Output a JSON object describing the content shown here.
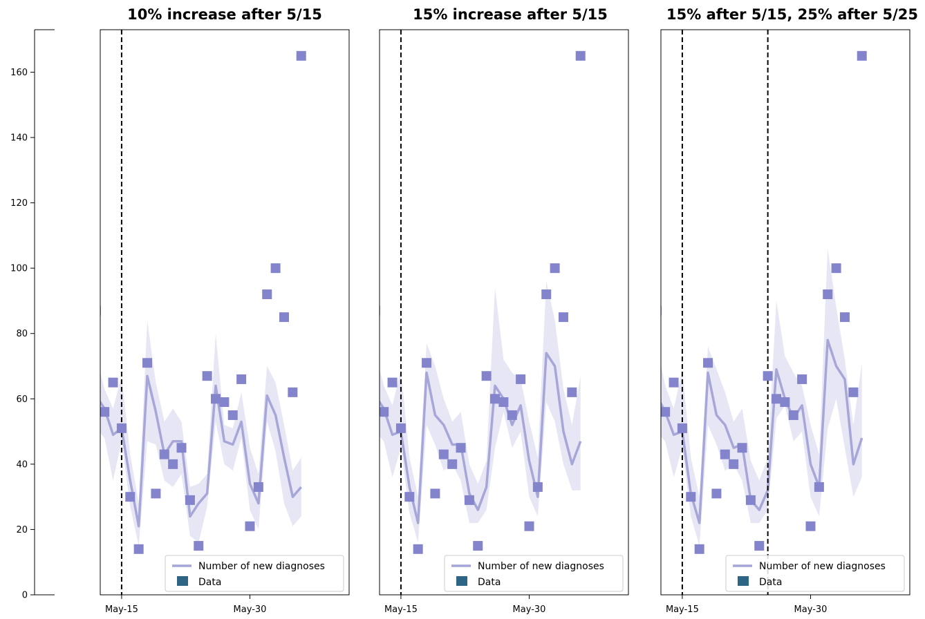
{
  "colors": {
    "line": "#a6a6d8",
    "band": "#d9d9f0",
    "marker": "#8484cc",
    "legend_data": "#2f6584",
    "axis": "#000000"
  },
  "chart_data": [
    {
      "type": "line",
      "title": "10% increase after 5/15",
      "xlabel": "",
      "ylabel": "",
      "x_ticks": [
        "May-15",
        "May-30"
      ],
      "x_tick_days": [
        15,
        30
      ],
      "vlines": [
        15
      ],
      "ylim": [
        0,
        173
      ],
      "xlim": [
        12.5,
        41.6
      ],
      "legend": {
        "placement": "lower-right",
        "entries": [
          "Number of new diagnoses",
          "Data"
        ]
      },
      "series": [
        {
          "name": "Number of new diagnoses",
          "kind": "line",
          "x": [
            12,
            13,
            14,
            15,
            16,
            17,
            18,
            19,
            20,
            21,
            22,
            23,
            24,
            25,
            26,
            27,
            28,
            29,
            30,
            31,
            32,
            33,
            34,
            35,
            36
          ],
          "values": [
            61,
            57,
            49,
            51,
            35,
            21,
            67,
            56,
            43,
            47,
            47,
            24,
            28,
            31,
            64,
            47,
            46,
            53,
            34,
            28,
            61,
            55,
            42,
            30,
            33
          ],
          "lower": [
            51,
            48,
            35,
            47,
            27,
            15,
            47,
            46,
            35,
            33,
            37,
            18,
            16,
            27,
            53,
            40,
            38,
            48,
            26,
            20,
            53,
            44,
            28,
            21,
            24
          ],
          "upper": [
            73,
            63,
            57,
            67,
            43,
            28,
            84,
            65,
            53,
            57,
            53,
            33,
            34,
            37,
            80,
            52,
            51,
            62,
            45,
            37,
            70,
            65,
            52,
            38,
            42
          ]
        },
        {
          "name": "Data",
          "kind": "scatter",
          "x": [
            12,
            13,
            14,
            15,
            16,
            17,
            18,
            19,
            20,
            21,
            22,
            23,
            24,
            25,
            26,
            27,
            28,
            29,
            30,
            31,
            32,
            33,
            34,
            35,
            36
          ],
          "values": [
            87,
            56,
            65,
            51,
            30,
            14,
            71,
            31,
            43,
            40,
            45,
            29,
            15,
            67,
            60,
            59,
            55,
            66,
            21,
            33,
            92,
            100,
            85,
            62,
            165
          ]
        }
      ]
    },
    {
      "type": "line",
      "title": "15% increase after 5/15",
      "xlabel": "",
      "ylabel": "",
      "x_ticks": [
        "May-15",
        "May-30"
      ],
      "x_tick_days": [
        15,
        30
      ],
      "vlines": [
        15
      ],
      "ylim": [
        0,
        173
      ],
      "xlim": [
        12.5,
        41.6
      ],
      "legend": {
        "placement": "lower-right",
        "entries": [
          "Number of new diagnoses",
          "Data"
        ]
      },
      "series": [
        {
          "name": "Number of new diagnoses",
          "kind": "line",
          "x": [
            12,
            13,
            14,
            15,
            16,
            17,
            18,
            19,
            20,
            21,
            22,
            23,
            24,
            25,
            26,
            27,
            28,
            29,
            30,
            31,
            32,
            33,
            34,
            35,
            36
          ],
          "values": [
            61,
            57,
            49,
            50,
            33,
            22,
            68,
            55,
            52,
            46,
            46,
            31,
            26,
            33,
            64,
            60,
            52,
            58,
            41,
            30,
            74,
            70,
            50,
            40,
            47
          ],
          "lower": [
            50,
            47,
            36,
            45,
            25,
            16,
            52,
            46,
            38,
            40,
            35,
            22,
            22,
            26,
            45,
            56,
            45,
            50,
            30,
            24,
            59,
            53,
            40,
            32,
            32
          ],
          "upper": [
            74,
            64,
            58,
            69,
            42,
            30,
            77,
            70,
            60,
            53,
            56,
            40,
            34,
            41,
            94,
            72,
            68,
            66,
            53,
            42,
            96,
            84,
            63,
            52,
            67
          ]
        },
        {
          "name": "Data",
          "kind": "scatter",
          "x": [
            12,
            13,
            14,
            15,
            16,
            17,
            18,
            19,
            20,
            21,
            22,
            23,
            24,
            25,
            26,
            27,
            28,
            29,
            30,
            31,
            32,
            33,
            34,
            35,
            36
          ],
          "values": [
            87,
            56,
            65,
            51,
            30,
            14,
            71,
            31,
            43,
            40,
            45,
            29,
            15,
            67,
            60,
            59,
            55,
            66,
            21,
            33,
            92,
            100,
            85,
            62,
            165
          ]
        }
      ]
    },
    {
      "type": "line",
      "title": "15% after 5/15, 25% after 5/25",
      "xlabel": "",
      "ylabel": "",
      "x_ticks": [
        "May-15",
        "May-30"
      ],
      "x_tick_days": [
        15,
        30
      ],
      "vlines": [
        15,
        25
      ],
      "ylim": [
        0,
        173
      ],
      "xlim": [
        12.5,
        41.6
      ],
      "legend": {
        "placement": "lower-right",
        "entries": [
          "Number of new diagnoses",
          "Data"
        ]
      },
      "series": [
        {
          "name": "Number of new diagnoses",
          "kind": "line",
          "x": [
            12,
            13,
            14,
            15,
            16,
            17,
            18,
            19,
            20,
            21,
            22,
            23,
            24,
            25,
            26,
            27,
            28,
            29,
            30,
            31,
            32,
            33,
            34,
            35,
            36
          ],
          "values": [
            61,
            56,
            49,
            50,
            31,
            22,
            68,
            55,
            52,
            45,
            46,
            29,
            26,
            32,
            69,
            60,
            54,
            58,
            40,
            33,
            78,
            70,
            66,
            40,
            48
          ],
          "lower": [
            50,
            47,
            36,
            45,
            24,
            15,
            52,
            46,
            38,
            40,
            35,
            22,
            22,
            26,
            54,
            58,
            47,
            50,
            30,
            24,
            51,
            60,
            45,
            30,
            36
          ],
          "upper": [
            77,
            64,
            57,
            69,
            42,
            30,
            76,
            69,
            62,
            53,
            57,
            41,
            35,
            42,
            90,
            73,
            68,
            64,
            52,
            43,
            106,
            88,
            72,
            52,
            71
          ]
        },
        {
          "name": "Data",
          "kind": "scatter",
          "x": [
            12,
            13,
            14,
            15,
            16,
            17,
            18,
            19,
            20,
            21,
            22,
            23,
            24,
            25,
            26,
            27,
            28,
            29,
            30,
            31,
            32,
            33,
            34,
            35,
            36
          ],
          "values": [
            87,
            56,
            65,
            51,
            30,
            14,
            71,
            31,
            43,
            40,
            45,
            29,
            15,
            67,
            60,
            59,
            55,
            66,
            21,
            33,
            92,
            100,
            85,
            62,
            165
          ]
        }
      ]
    }
  ],
  "y_axis": {
    "ticks": [
      0,
      20,
      40,
      60,
      80,
      100,
      120,
      140,
      160
    ],
    "tick_labels": [
      "0",
      "20",
      "40",
      "60",
      "80",
      "100",
      "120",
      "140",
      "160"
    ]
  }
}
